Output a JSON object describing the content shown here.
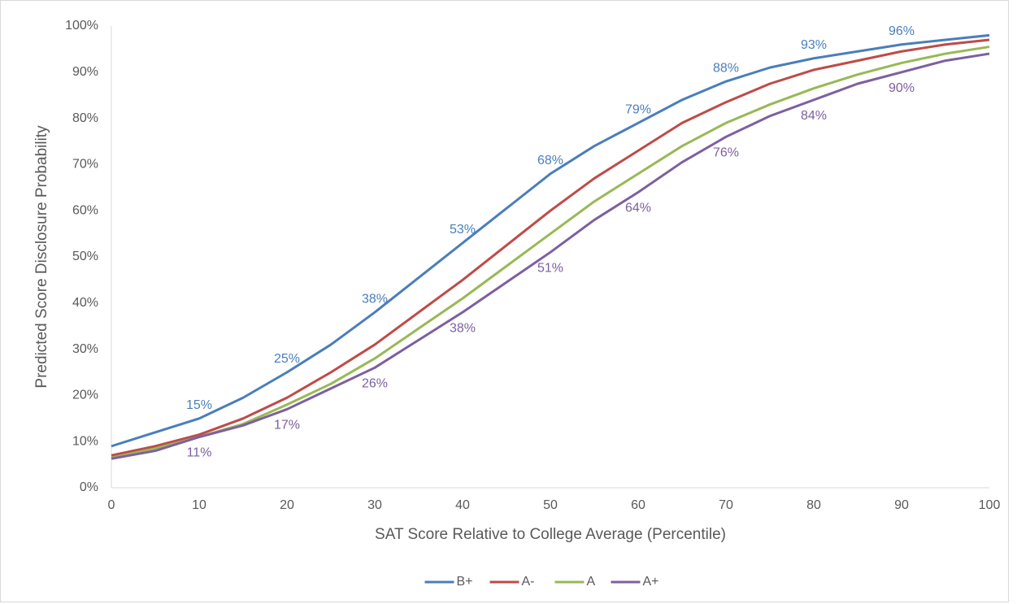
{
  "chart_data": {
    "type": "line",
    "x_label": "SAT Score Relative to College Average (Percentile)",
    "y_label": "Predicted Score Disclosure Probability",
    "x": [
      0,
      5,
      10,
      15,
      20,
      25,
      30,
      35,
      40,
      45,
      50,
      55,
      60,
      65,
      70,
      75,
      80,
      85,
      90,
      95,
      100
    ],
    "series": [
      {
        "name": "B+",
        "color": "#4a7ebb",
        "values": [
          9,
          12,
          15,
          19.5,
          25,
          31,
          38,
          45.5,
          53,
          60.5,
          68,
          74,
          79,
          84,
          88,
          91,
          93,
          94.5,
          96,
          97,
          98
        ],
        "value_labels": [
          null,
          null,
          "15%",
          null,
          "25%",
          null,
          "38%",
          null,
          "53%",
          null,
          "68%",
          null,
          "79%",
          null,
          "88%",
          null,
          "93%",
          null,
          "96%",
          null,
          null
        ]
      },
      {
        "name": "A-",
        "color": "#be4b48",
        "values": [
          7,
          9,
          11.5,
          15,
          19.5,
          25,
          31,
          38,
          45,
          52.5,
          60,
          67,
          73,
          79,
          83.5,
          87.5,
          90.5,
          92.5,
          94.5,
          96,
          97
        ]
      },
      {
        "name": "A",
        "color": "#98b954",
        "values": [
          6.5,
          8.5,
          11,
          13.8,
          18,
          22.5,
          28,
          34.5,
          41,
          48,
          55,
          62,
          68,
          74,
          79,
          83,
          86.5,
          89.5,
          92,
          94,
          95.5
        ]
      },
      {
        "name": "A+",
        "color": "#7d5fa0",
        "values": [
          6.3,
          8,
          11,
          13.5,
          17,
          21.5,
          26,
          32,
          38,
          44.5,
          51,
          58,
          64,
          70.5,
          76,
          80.5,
          84,
          87.5,
          90,
          92.5,
          94
        ],
        "value_labels": [
          null,
          null,
          "11%",
          null,
          "17%",
          null,
          "26%",
          null,
          "38%",
          null,
          "51%",
          null,
          "64%",
          null,
          "76%",
          null,
          "84%",
          null,
          "90%",
          null,
          null
        ]
      }
    ],
    "xlim": [
      0,
      100
    ],
    "xticks": [
      0,
      10,
      20,
      30,
      40,
      50,
      60,
      70,
      80,
      90,
      100
    ],
    "ylim": [
      0,
      100
    ],
    "yticks": [
      {
        "value": 0,
        "label": "0%"
      },
      {
        "value": 10,
        "label": "10%"
      },
      {
        "value": 20,
        "label": "20%"
      },
      {
        "value": 30,
        "label": "30%"
      },
      {
        "value": 40,
        "label": "40%"
      },
      {
        "value": 50,
        "label": "50%"
      },
      {
        "value": 60,
        "label": "60%"
      },
      {
        "value": 70,
        "label": "70%"
      },
      {
        "value": 80,
        "label": "80%"
      },
      {
        "value": 90,
        "label": "90%"
      },
      {
        "value": 100,
        "label": "100%"
      }
    ],
    "grid": false,
    "legend": "bottom"
  }
}
